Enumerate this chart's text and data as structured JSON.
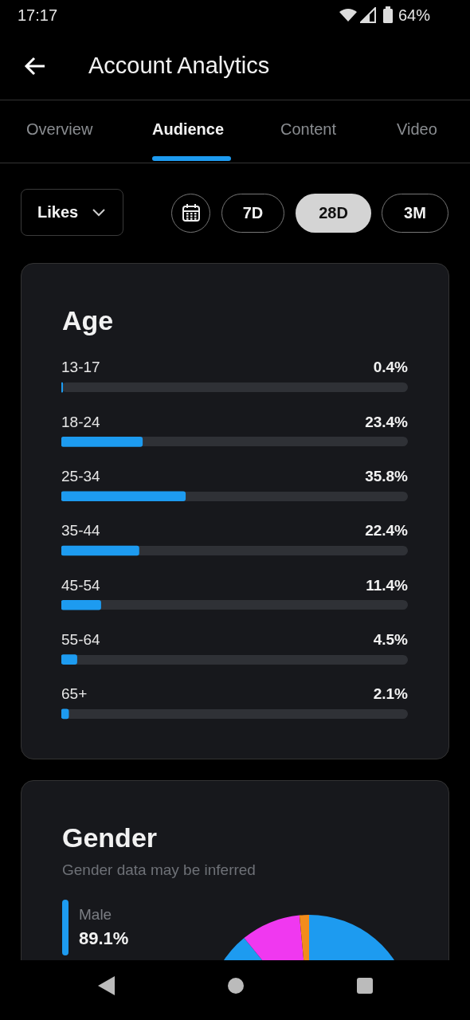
{
  "chart_data": [
    {
      "type": "other",
      "title": "Account Analytics",
      "annotations": [
        "17:17",
        "64%",
        "Overview",
        "Audience",
        "Content",
        "Video",
        "Likes",
        "7D",
        "28D",
        "3M"
      ]
    },
    {
      "type": "bar",
      "orientation": "horizontal",
      "title": "Age",
      "categories": [
        "13-17",
        "18-24",
        "25-34",
        "35-44",
        "45-54",
        "55-64",
        "65+"
      ],
      "values": [
        0.4,
        23.4,
        35.8,
        22.4,
        11.4,
        4.5,
        2.1
      ],
      "value_labels": [
        "0.4%",
        "23.4%",
        "35.8%",
        "22.4%",
        "11.4%",
        "4.5%",
        "2.1%"
      ],
      "color": "#1d9bf0",
      "xlim": [
        0,
        100
      ],
      "tick_labels": "y"
    },
    {
      "type": "donut",
      "title": "Gender",
      "subtitle": "Gender data may be inferred",
      "categories": [
        "Male",
        null,
        null
      ],
      "values": [
        89.1,
        9.4,
        1.5
      ],
      "colors": [
        "#1d9bf0",
        "#f038f0",
        "#f28c1c"
      ],
      "value_labels": [
        "89.1%",
        null,
        null
      ]
    }
  ]
}
